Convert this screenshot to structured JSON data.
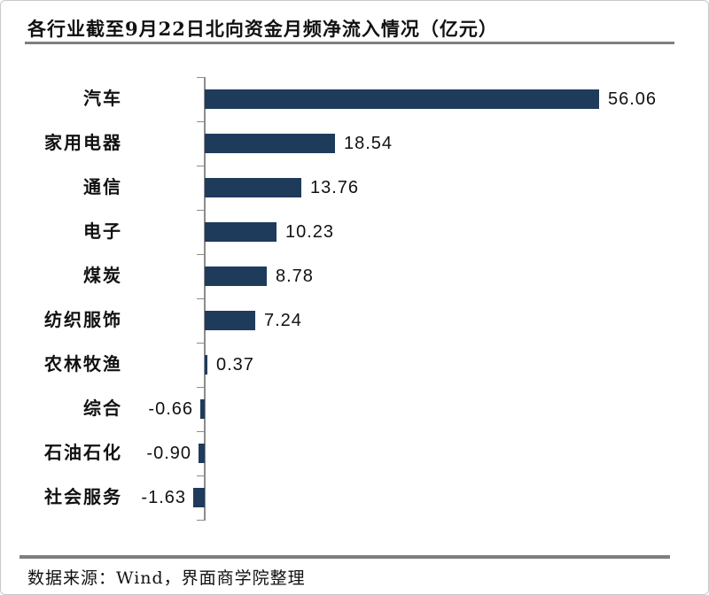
{
  "page": {
    "title": "各行业截至9月22日北向资金月频净流入情况（亿元）",
    "footer_note": "数据来源：Wind，界面商学院整理"
  },
  "colors": {
    "bar": "#1f3b5c",
    "rule": "#7f7f7f",
    "axis": "#8c8c8c",
    "text": "#111111",
    "page_border": "#c9c9c9"
  },
  "chart_data": {
    "type": "bar",
    "orientation": "horizontal",
    "title": "各行业截至9月22日北向资金月频净流入情况（亿元）",
    "unit": "亿元",
    "categories": [
      "汽车",
      "家用电器",
      "通信",
      "电子",
      "煤炭",
      "纺织服饰",
      "农林牧渔",
      "综合",
      "石油石化",
      "社会服务"
    ],
    "values": [
      56.06,
      18.54,
      13.76,
      10.23,
      8.78,
      7.24,
      0.37,
      -0.66,
      -0.9,
      -1.63
    ],
    "value_labels": [
      "56.06",
      "18.54",
      "13.76",
      "10.23",
      "8.78",
      "7.24",
      "0.37",
      "-0.66",
      "-0.90",
      "-1.63"
    ],
    "xlim": [
      -2,
      60
    ],
    "grid": false,
    "legend": false,
    "value_label_position": "bar-end",
    "source_note": "数据来源：Wind，界面商学院整理"
  }
}
